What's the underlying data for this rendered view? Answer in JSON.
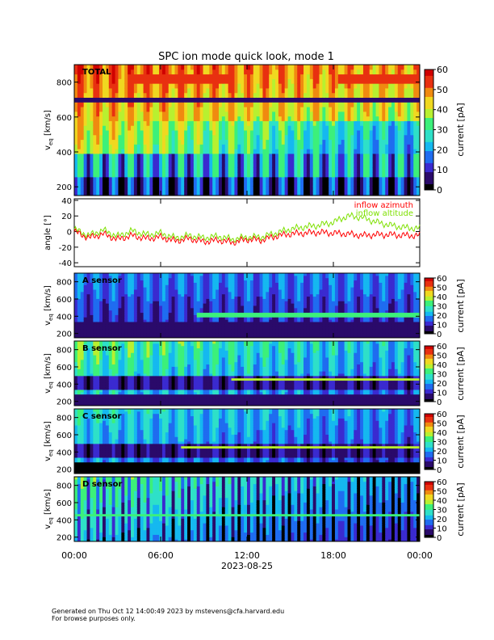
{
  "title": "SPC ion mode quick look, mode 1",
  "footer": {
    "line1": "Generated on Thu Oct 12 14:00:49 2023 by mstevens@cfa.harvard.edu",
    "line2": "For browse purposes only."
  },
  "colors": {
    "colormap": [
      "#000000",
      "#2a0a6a",
      "#3a2ad0",
      "#1f6cf0",
      "#15b8f0",
      "#2ee0c8",
      "#3cf07a",
      "#b8f030",
      "#f0d820",
      "#f08a10",
      "#e83010",
      "#d00000"
    ],
    "azimuth": "#ff0000",
    "altitude": "#7ee000"
  },
  "chart_data": [
    {
      "type": "heatmap",
      "panel": "total",
      "label": "TOTAL",
      "ylabel": "v_eq [km/s]",
      "ylim": [
        150,
        900
      ],
      "yticks": [
        200,
        400,
        600,
        800
      ],
      "colorbar": {
        "label": "current [pA]",
        "range": [
          0,
          60
        ],
        "ticks": [
          0,
          10,
          20,
          30,
          40,
          50,
          60
        ]
      }
    },
    {
      "type": "line",
      "panel": "angles",
      "ylabel": "angle [°]",
      "ylim": [
        -45,
        42
      ],
      "yticks": [
        -40,
        -20,
        0,
        20,
        40
      ],
      "x_hours": [
        0,
        1,
        2,
        3,
        4,
        5,
        6,
        7,
        8,
        9,
        10,
        11,
        12,
        13,
        14,
        15,
        16,
        17,
        18,
        19,
        20,
        21,
        22,
        23,
        24
      ],
      "series": [
        {
          "name": "inflow azimuth",
          "values": [
            0,
            -8,
            -3,
            -10,
            -5,
            -9,
            -7,
            -12,
            -9,
            -13,
            -11,
            -14,
            -10,
            -11,
            -6,
            -3,
            -2,
            -1,
            -2,
            -3,
            -5,
            -4,
            -4,
            -5,
            -5
          ]
        },
        {
          "name": "inflow altitude",
          "values": [
            3,
            -5,
            2,
            -6,
            1,
            -4,
            -2,
            -8,
            -5,
            -8,
            -6,
            -10,
            -7,
            -7,
            -2,
            3,
            6,
            8,
            12,
            20,
            18,
            12,
            8,
            5,
            4
          ]
        }
      ]
    },
    {
      "type": "heatmap",
      "panel": "a",
      "label": "A sensor",
      "ylabel": "v_eq [km/s]",
      "ylim": [
        150,
        900
      ],
      "yticks": [
        200,
        400,
        600,
        800
      ],
      "colorbar": {
        "label": "current [pA]",
        "range": [
          0,
          60
        ],
        "ticks": [
          0,
          10,
          20,
          30,
          40,
          50,
          60
        ]
      }
    },
    {
      "type": "heatmap",
      "panel": "b",
      "label": "B sensor",
      "ylabel": "v_eq [km/s]",
      "ylim": [
        150,
        900
      ],
      "yticks": [
        200,
        400,
        600,
        800
      ],
      "colorbar": {
        "label": "current [pA]",
        "range": [
          0,
          60
        ],
        "ticks": [
          0,
          10,
          20,
          30,
          40,
          50,
          60
        ]
      }
    },
    {
      "type": "heatmap",
      "panel": "c",
      "label": "C sensor",
      "ylabel": "v_eq [km/s]",
      "ylim": [
        150,
        900
      ],
      "yticks": [
        200,
        400,
        600,
        800
      ],
      "colorbar": {
        "label": "current [pA]",
        "range": [
          0,
          60
        ],
        "ticks": [
          0,
          10,
          20,
          30,
          40,
          50,
          60
        ]
      }
    },
    {
      "type": "heatmap",
      "panel": "d",
      "label": "D sensor",
      "ylabel": "v_eq [km/s]",
      "ylim": [
        150,
        900
      ],
      "yticks": [
        200,
        400,
        600,
        800
      ],
      "colorbar": {
        "label": "current [pA]",
        "range": [
          0,
          60
        ],
        "ticks": [
          0,
          10,
          20,
          30,
          40,
          50,
          60
        ]
      }
    }
  ],
  "xaxis": {
    "range_hours": [
      0,
      24
    ],
    "tick_labels": [
      "00:00",
      "06:00",
      "12:00",
      "18:00",
      "00:00"
    ],
    "date_label": "2023-08-25"
  }
}
